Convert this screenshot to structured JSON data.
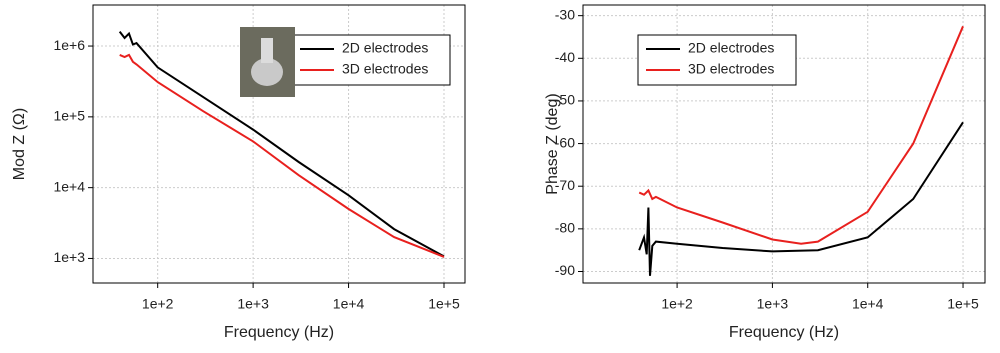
{
  "chart_data": [
    {
      "type": "line",
      "xscale": "log",
      "yscale": "log",
      "grid": true,
      "legend": "upper right",
      "xlabel": "Frequency (Hz)",
      "ylabel": "Mod Z (Ω)",
      "xlim": [
        21,
        166000
      ],
      "ylim": [
        450,
        3800000
      ],
      "xticks": [
        {
          "value": 100,
          "label": "1e+2"
        },
        {
          "value": 1000,
          "label": "1e+3"
        },
        {
          "value": 10000,
          "label": "1e+4"
        },
        {
          "value": 100000,
          "label": "1e+5"
        }
      ],
      "yticks": [
        {
          "value": 1000,
          "label": "1e+3"
        },
        {
          "value": 10000,
          "label": "1e+4"
        },
        {
          "value": 100000,
          "label": "1e+5"
        },
        {
          "value": 1000000,
          "label": "1e+6"
        }
      ],
      "series": [
        {
          "name": "2D electrodes",
          "color": "#000000",
          "x": [
            40,
            45,
            50,
            55,
            60,
            100,
            300,
            1000,
            3000,
            10000,
            30000,
            100000
          ],
          "values": [
            1600000,
            1300000,
            1500000,
            1050000,
            1100000,
            500000,
            190000,
            66000,
            23000,
            7800,
            2600,
            1070
          ]
        },
        {
          "name": "3D electrodes",
          "color": "#e8201e",
          "x": [
            40,
            45,
            50,
            55,
            60,
            100,
            300,
            1000,
            3000,
            10000,
            30000,
            100000
          ],
          "values": [
            750000,
            700000,
            750000,
            600000,
            550000,
            310000,
            120000,
            45000,
            15000,
            5000,
            2000,
            1050
          ]
        }
      ]
    },
    {
      "type": "line",
      "xscale": "log",
      "yscale": "linear",
      "grid": true,
      "legend": "upper left",
      "xlabel": "Frequency (Hz)",
      "ylabel": "Phase Z (deg)",
      "xlim": [
        10.3,
        170000
      ],
      "ylim": [
        -92.7,
        -27.5
      ],
      "xticks": [
        {
          "value": 100,
          "label": "1e+2"
        },
        {
          "value": 1000,
          "label": "1e+3"
        },
        {
          "value": 10000,
          "label": "1e+4"
        },
        {
          "value": 100000,
          "label": "1e+5"
        }
      ],
      "yticks": [
        -90,
        -80,
        -70,
        -60,
        -50,
        -40,
        -30
      ],
      "series": [
        {
          "name": "2D electrodes",
          "color": "#000000",
          "x": [
            40,
            45,
            48,
            50,
            52,
            55,
            60,
            100,
            300,
            1000,
            3000,
            10000,
            30000,
            100000
          ],
          "values": [
            -85,
            -82,
            -86,
            -75,
            -91,
            -84,
            -83,
            -83.5,
            -84.5,
            -85.3,
            -85,
            -82,
            -73,
            -55
          ]
        },
        {
          "name": "3D electrodes",
          "color": "#e8201e",
          "x": [
            40,
            45,
            50,
            55,
            60,
            100,
            300,
            1000,
            2000,
            3000,
            10000,
            30000,
            100000
          ],
          "values": [
            -71.5,
            -72,
            -71,
            -73,
            -72.5,
            -75,
            -78.5,
            -82.5,
            -83.5,
            -83,
            -76,
            -60,
            -32.5
          ]
        }
      ]
    }
  ]
}
